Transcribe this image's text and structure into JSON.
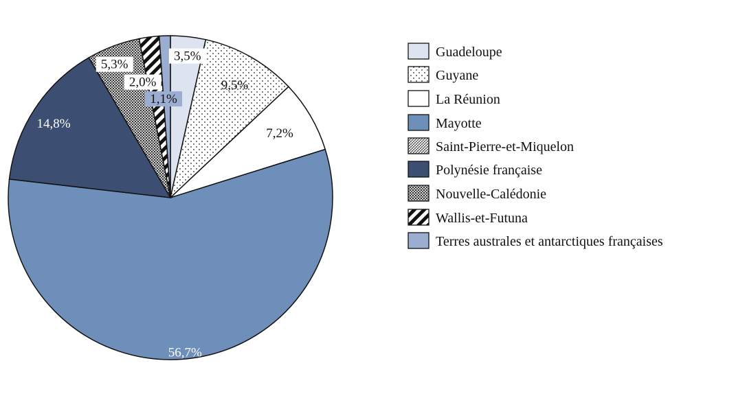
{
  "chart_data": {
    "type": "pie",
    "title": "",
    "series": [
      {
        "name": "",
        "values": [
          3.5,
          9.5,
          7.2,
          56.7,
          0.0,
          14.8,
          5.3,
          2.0,
          1.1
        ]
      }
    ],
    "categories": [
      "Guadeloupe",
      "Guyane",
      "La Réunion",
      "Mayotte",
      "Saint-Pierre-et-Miquelon",
      "Polynésie française",
      "Nouvelle-Calédonie",
      "Wallis-et-Futuna",
      "Terres australes et antarctiques françaises"
    ],
    "labels": [
      "3,5%",
      "9,5%",
      "7,2%",
      "56,7%",
      "",
      "14,8%",
      "5,3%",
      "2,0%",
      "1,1%"
    ],
    "legend_position": "right"
  },
  "colors": {
    "guadeloupe": "#dde3ef",
    "guyane": "#ffffff",
    "la_reunion": "#ffffff",
    "mayotte": "#6e8fba",
    "saint_pierre": "#ffffff",
    "polynesie": "#3c4f72",
    "nouvelle_caledonie": "#b8b8b8",
    "wallis": "#ffffff",
    "taaf": "#9badd0",
    "stroke": "#111111"
  },
  "legend": {
    "items": [
      "Guadeloupe",
      "Guyane",
      "La Réunion",
      "Mayotte",
      "Saint-Pierre-et-Miquelon",
      "Polynésie française",
      "Nouvelle-Calédonie",
      "Wallis-et-Futuna",
      "Terres australes et antarctiques françaises"
    ]
  }
}
